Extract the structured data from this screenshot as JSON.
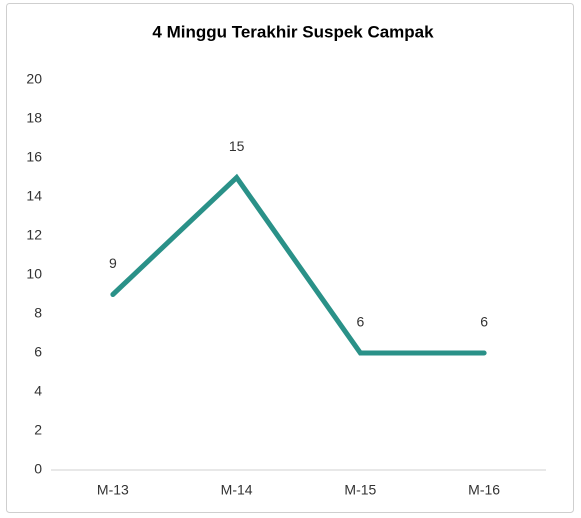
{
  "chart_data": {
    "type": "line",
    "title": "4 Minggu Terakhir Suspek Campak",
    "categories": [
      "M-13",
      "M-14",
      "M-15",
      "M-16"
    ],
    "series": [
      {
        "name": "Suspek Campak",
        "color": "#2a9188",
        "values": [
          9,
          15,
          6,
          6
        ]
      }
    ],
    "ylim": [
      0,
      20
    ],
    "yticks": [
      0,
      2,
      4,
      6,
      8,
      10,
      12,
      14,
      16,
      18,
      20
    ],
    "grid": false,
    "data_labels": true
  }
}
